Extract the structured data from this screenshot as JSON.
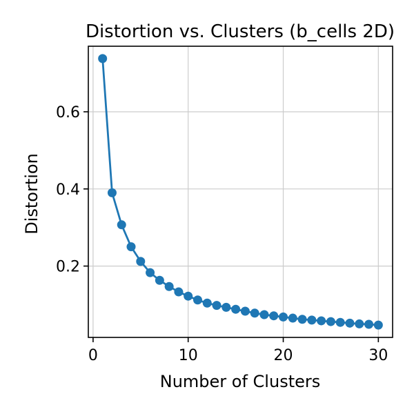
{
  "chart_data": {
    "type": "line",
    "title": "Distortion vs. Clusters (b_cells 2D)",
    "xlabel": "Number of Clusters",
    "ylabel": "Distortion",
    "xlim": [
      -0.5,
      31.5
    ],
    "ylim": [
      0.015,
      0.77
    ],
    "xticks": [
      0,
      10,
      20,
      30
    ],
    "yticks": [
      0.2,
      0.4,
      0.6
    ],
    "xtick_labels": [
      "0",
      "10",
      "20",
      "30"
    ],
    "ytick_labels": [
      "0.2",
      "0.4",
      "0.6"
    ],
    "grid": true,
    "legend": false,
    "marker": "circle",
    "color": "#1f77b4",
    "series": [
      {
        "x": [
          1,
          2,
          3,
          4,
          5,
          6,
          7,
          8,
          9,
          10,
          11,
          12,
          13,
          14,
          15,
          16,
          17,
          18,
          19,
          20,
          21,
          22,
          23,
          24,
          25,
          26,
          27,
          28,
          29,
          30
        ],
        "values": [
          0.738,
          0.39,
          0.307,
          0.25,
          0.212,
          0.183,
          0.163,
          0.147,
          0.133,
          0.122,
          0.112,
          0.104,
          0.098,
          0.093,
          0.088,
          0.083,
          0.078,
          0.074,
          0.071,
          0.068,
          0.065,
          0.062,
          0.06,
          0.058,
          0.056,
          0.054,
          0.052,
          0.05,
          0.049,
          0.047
        ]
      }
    ]
  }
}
